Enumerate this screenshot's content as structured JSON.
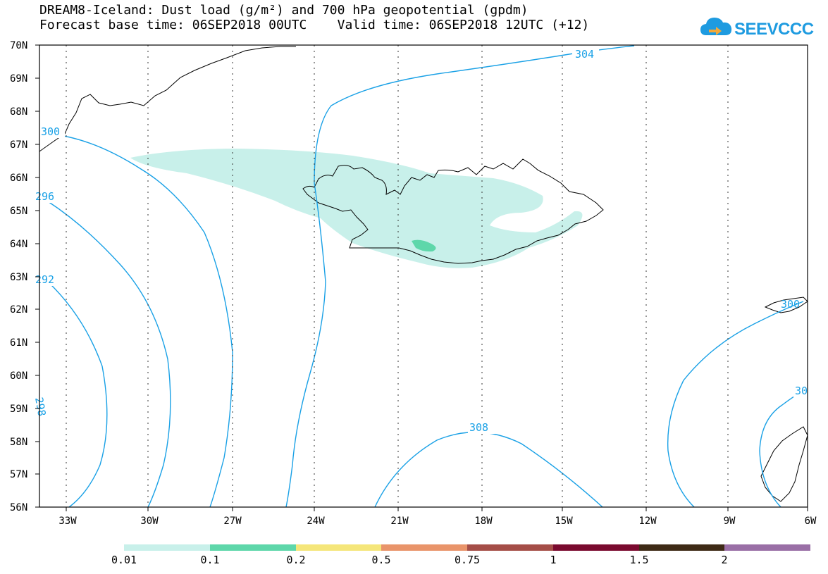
{
  "header": {
    "title_line1": "DREAM8-Iceland: Dust load (g/m²) and 700 hPa geopotential (gpdm)",
    "title_line2": "Forecast base time: 06SEP2018 00UTC    Valid time: 06SEP2018 12UTC (+12)"
  },
  "logo": {
    "text": "SEEVCCC",
    "color": "#1e9be0"
  },
  "map": {
    "lat_range": [
      56,
      70
    ],
    "lon_range": [
      -34.5,
      -6
    ],
    "lat_labels": [
      "70N",
      "69N",
      "68N",
      "67N",
      "66N",
      "65N",
      "64N",
      "63N",
      "62N",
      "61N",
      "60N",
      "59N",
      "58N",
      "57N",
      "56N"
    ],
    "lon_labels": [
      "33W",
      "30W",
      "27W",
      "24W",
      "21W",
      "18W",
      "15W",
      "12W",
      "9W",
      "6W"
    ],
    "contour_color": "#1aa1e6",
    "contour_labels": [
      "304",
      "300",
      "296",
      "292",
      "298",
      "308",
      "300",
      "30"
    ],
    "dust_colors": {
      "light": "#c8f0ea",
      "medium": "#5ed7aa"
    }
  },
  "legend": {
    "colors": [
      "#c8f0ea",
      "#5ed7aa",
      "#f5e67a",
      "#e9946a",
      "#a54e48",
      "#7a0a2f",
      "#3e2a16",
      "#9a6fa6"
    ],
    "labels": [
      "0.01",
      "0.1",
      "0.2",
      "0.5",
      "0.75",
      "1",
      "1.5",
      "2"
    ]
  }
}
